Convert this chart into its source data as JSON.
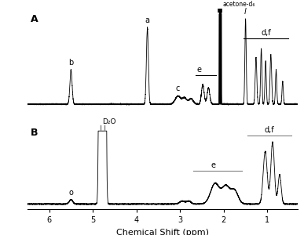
{
  "figsize": [
    3.87,
    3.0
  ],
  "dpi": 100,
  "background": "#ffffff",
  "xlim": [
    6.5,
    0.3
  ],
  "xlabel": "Chemical Shift (ppm)",
  "panel_A_label": "A",
  "panel_B_label": "B",
  "acetone_label": "acetone-d₆",
  "D2O_label": "D₂O",
  "xticks": [
    6,
    5,
    4,
    3,
    2,
    1
  ],
  "xtick_labels": [
    "6",
    "5",
    "4",
    "3",
    "2",
    "1"
  ]
}
